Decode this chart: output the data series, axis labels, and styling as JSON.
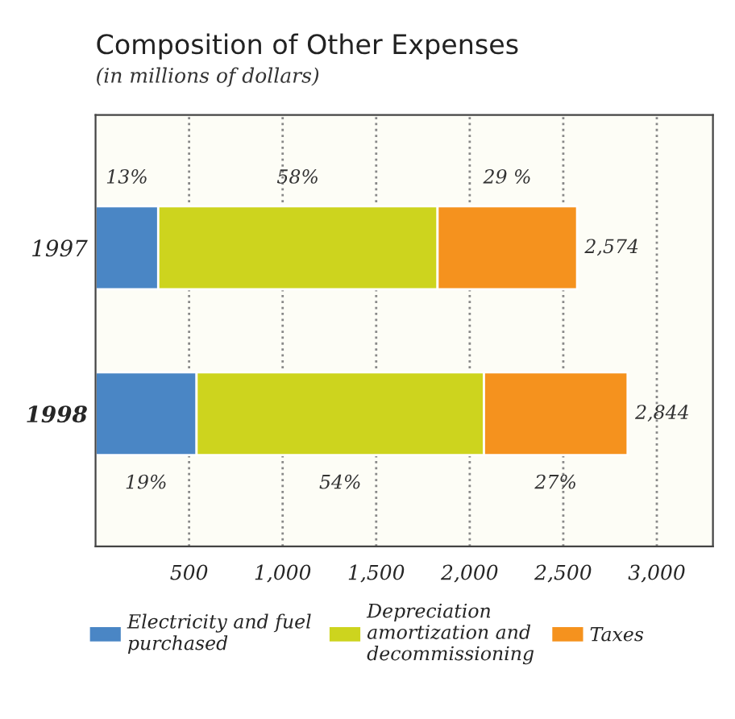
{
  "chart_data": {
    "type": "bar",
    "orientation": "horizontal",
    "stacked": true,
    "title": "Composition of Other Expenses",
    "subtitle": "(in millions of dollars)",
    "categories": [
      "1997",
      "1998"
    ],
    "series": [
      {
        "name": "Electricity and fuel purchased",
        "color": "#4a86c5",
        "values": [
          335,
          540
        ]
      },
      {
        "name": "Depreciation amortization and decommissioning",
        "color": "#cdd41e",
        "values": [
          1493,
          1536
        ]
      },
      {
        "name": "Taxes",
        "color": "#f5921e",
        "values": [
          746,
          768
        ]
      }
    ],
    "annotations": [
      "13%",
      "58%",
      "29 %",
      "19%",
      "54%",
      "27%"
    ],
    "totals": [
      "2,574",
      "2,844"
    ],
    "xlim": [
      0,
      3300
    ],
    "xticks": [
      500,
      {
        "value": 1000,
        "label": "1,000"
      },
      {
        "value": 1500,
        "label": "1,500"
      },
      {
        "value": 2000,
        "label": "2,000"
      },
      {
        "value": 2500,
        "label": "2,500"
      },
      {
        "value": 3000,
        "label": "3,000"
      }
    ],
    "grid": "x",
    "legend": "bottom"
  }
}
